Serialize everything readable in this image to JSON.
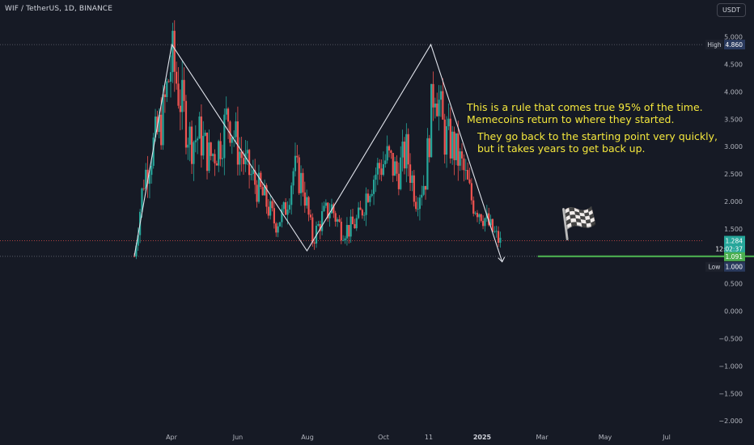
{
  "header": {
    "title": "WIF / TetherUS, 1D, BINANCE",
    "currency_button": "USDT"
  },
  "annotations": {
    "line1": "This is a rule that comes true 95% of the time.",
    "line2": "Memecoins return to where they started.",
    "line3": "They go back to the starting point very quickly,",
    "line4": "but it takes years to get back up."
  },
  "flag_icon": "🏁",
  "price_labels": {
    "high_tag": "High",
    "high_value": "4.860",
    "low_tag": "Low",
    "low_value": "1.000",
    "last_price": "1.284",
    "countdown": "12:02:37",
    "target_value": "1.091"
  },
  "colors": {
    "up": "#26a69a",
    "down": "#ef5350",
    "background": "#161a25",
    "annotation": "#f5e83d",
    "target_line": "#4caf50"
  },
  "chart_data": {
    "type": "candlestick",
    "title": "WIF / TetherUS, 1D, BINANCE",
    "y_ticks": [
      5.0,
      4.5,
      4.0,
      3.5,
      3.0,
      2.5,
      2.0,
      1.5,
      1.0,
      0.5,
      0.0,
      -0.5,
      -1.0,
      -1.5,
      -2.0
    ],
    "y_tick_labels": [
      "5.000",
      "4.500",
      "4.000",
      "3.500",
      "3.000",
      "2.500",
      "2.000",
      "1.500",
      "1.000",
      "0.500",
      "0.000",
      "−0.500",
      "−1.000",
      "−1.500",
      "−2.000"
    ],
    "ylim": [
      -2.07,
      5.0
    ],
    "x_ticks": [
      "Apr",
      "Jun",
      "Aug",
      "Oct",
      "11",
      "2025",
      "Mar",
      "May",
      "Jul"
    ],
    "price_series_approx": [
      [
        0.0,
        1.0
      ],
      [
        0.5,
        2.4
      ],
      [
        1.0,
        3.0
      ],
      [
        1.5,
        3.5
      ],
      [
        2.0,
        4.6
      ],
      [
        2.5,
        3.8
      ],
      [
        3.0,
        3.1
      ],
      [
        3.5,
        3.2
      ],
      [
        4.0,
        2.8
      ],
      [
        4.5,
        3.0
      ],
      [
        5.0,
        3.6
      ],
      [
        5.5,
        3.0
      ],
      [
        6.0,
        2.6
      ],
      [
        6.5,
        2.3
      ],
      [
        7.0,
        2.0
      ],
      [
        7.5,
        1.6
      ],
      [
        8.0,
        1.8
      ],
      [
        8.5,
        2.6
      ],
      [
        9.0,
        2.3
      ],
      [
        9.5,
        1.3
      ],
      [
        10.0,
        1.7
      ],
      [
        10.5,
        1.9
      ],
      [
        11.0,
        1.5
      ],
      [
        11.5,
        1.5
      ],
      [
        12.0,
        1.7
      ],
      [
        12.5,
        2.3
      ],
      [
        13.0,
        2.6
      ],
      [
        13.5,
        2.8
      ],
      [
        14.0,
        2.5
      ],
      [
        14.5,
        2.9
      ],
      [
        15.0,
        2.1
      ],
      [
        15.5,
        2.4
      ],
      [
        16.0,
        4.3
      ],
      [
        16.5,
        3.2
      ],
      [
        17.0,
        3.0
      ],
      [
        17.5,
        2.6
      ],
      [
        18.0,
        2.0
      ],
      [
        18.5,
        1.8
      ],
      [
        19.0,
        1.5
      ],
      [
        19.5,
        1.25
      ]
    ],
    "trend_lines": [
      {
        "points": [
          [
            0.0,
            1.0
          ],
          [
            2.0,
            4.86
          ],
          [
            9.2,
            1.1
          ],
          [
            15.8,
            4.86
          ],
          [
            19.6,
            0.9
          ]
        ]
      },
      {
        "points": [
          [
            21.5,
            1.0
          ],
          [
            36.5,
            1.0
          ]
        ],
        "label": "target"
      }
    ],
    "horizontal_levels": [
      4.86,
      1.284,
      1.0
    ],
    "grid": false
  }
}
